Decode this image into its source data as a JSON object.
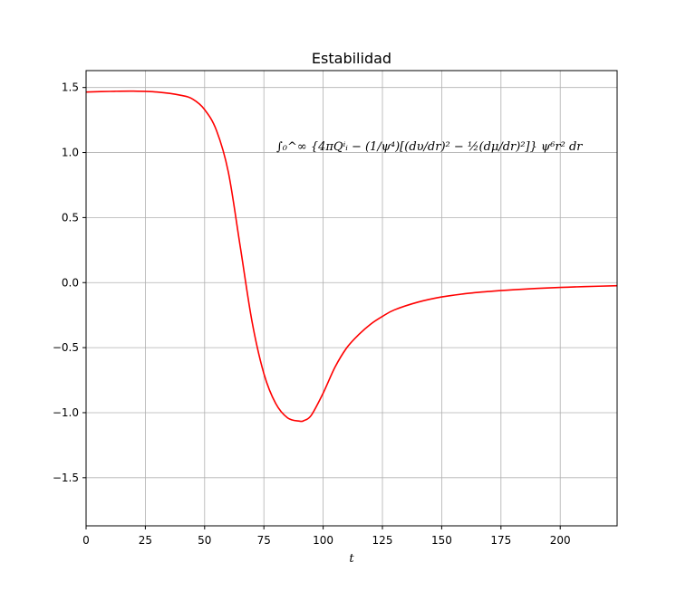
{
  "chart_data": {
    "type": "line",
    "title": "Estabilidad",
    "xlabel": "t",
    "ylabel": "",
    "xlim": [
      0,
      224
    ],
    "ylim": [
      -1.87,
      1.63
    ],
    "grid": true,
    "xticks": [
      0,
      25,
      50,
      75,
      100,
      125,
      150,
      175,
      200
    ],
    "xtick_labels": [
      "0",
      "25",
      "50",
      "75",
      "100",
      "125",
      "150",
      "175",
      "200"
    ],
    "yticks": [
      1.5,
      1.0,
      0.5,
      0.0,
      -0.5,
      -1.0,
      -1.5
    ],
    "ytick_labels": [
      "1.5",
      "1.0",
      "0.5",
      "0.0",
      "−0.5",
      "−1.0",
      "−1.5"
    ],
    "annotation": "∫₀^∞ {4πQⁱᵢ − (1/ψ⁴)[(dυ/dr)² − ½(dμ/dr)²]} ψ⁶r² dr",
    "series": [
      {
        "color": "#ff0000",
        "x": [
          0,
          10,
          20,
          30,
          40,
          45,
          50,
          55,
          60,
          65,
          70,
          75,
          80,
          85,
          90,
          92,
          95,
          100,
          105,
          110,
          115,
          120,
          125,
          130,
          140,
          150,
          160,
          170,
          180,
          190,
          200,
          210,
          224
        ],
        "y": [
          1.465,
          1.47,
          1.472,
          1.465,
          1.44,
          1.41,
          1.33,
          1.17,
          0.85,
          0.28,
          -0.3,
          -0.7,
          -0.93,
          -1.04,
          -1.065,
          -1.06,
          -1.02,
          -0.85,
          -0.65,
          -0.5,
          -0.4,
          -0.32,
          -0.26,
          -0.21,
          -0.15,
          -0.11,
          -0.085,
          -0.068,
          -0.055,
          -0.045,
          -0.037,
          -0.031,
          -0.024
        ]
      }
    ]
  }
}
